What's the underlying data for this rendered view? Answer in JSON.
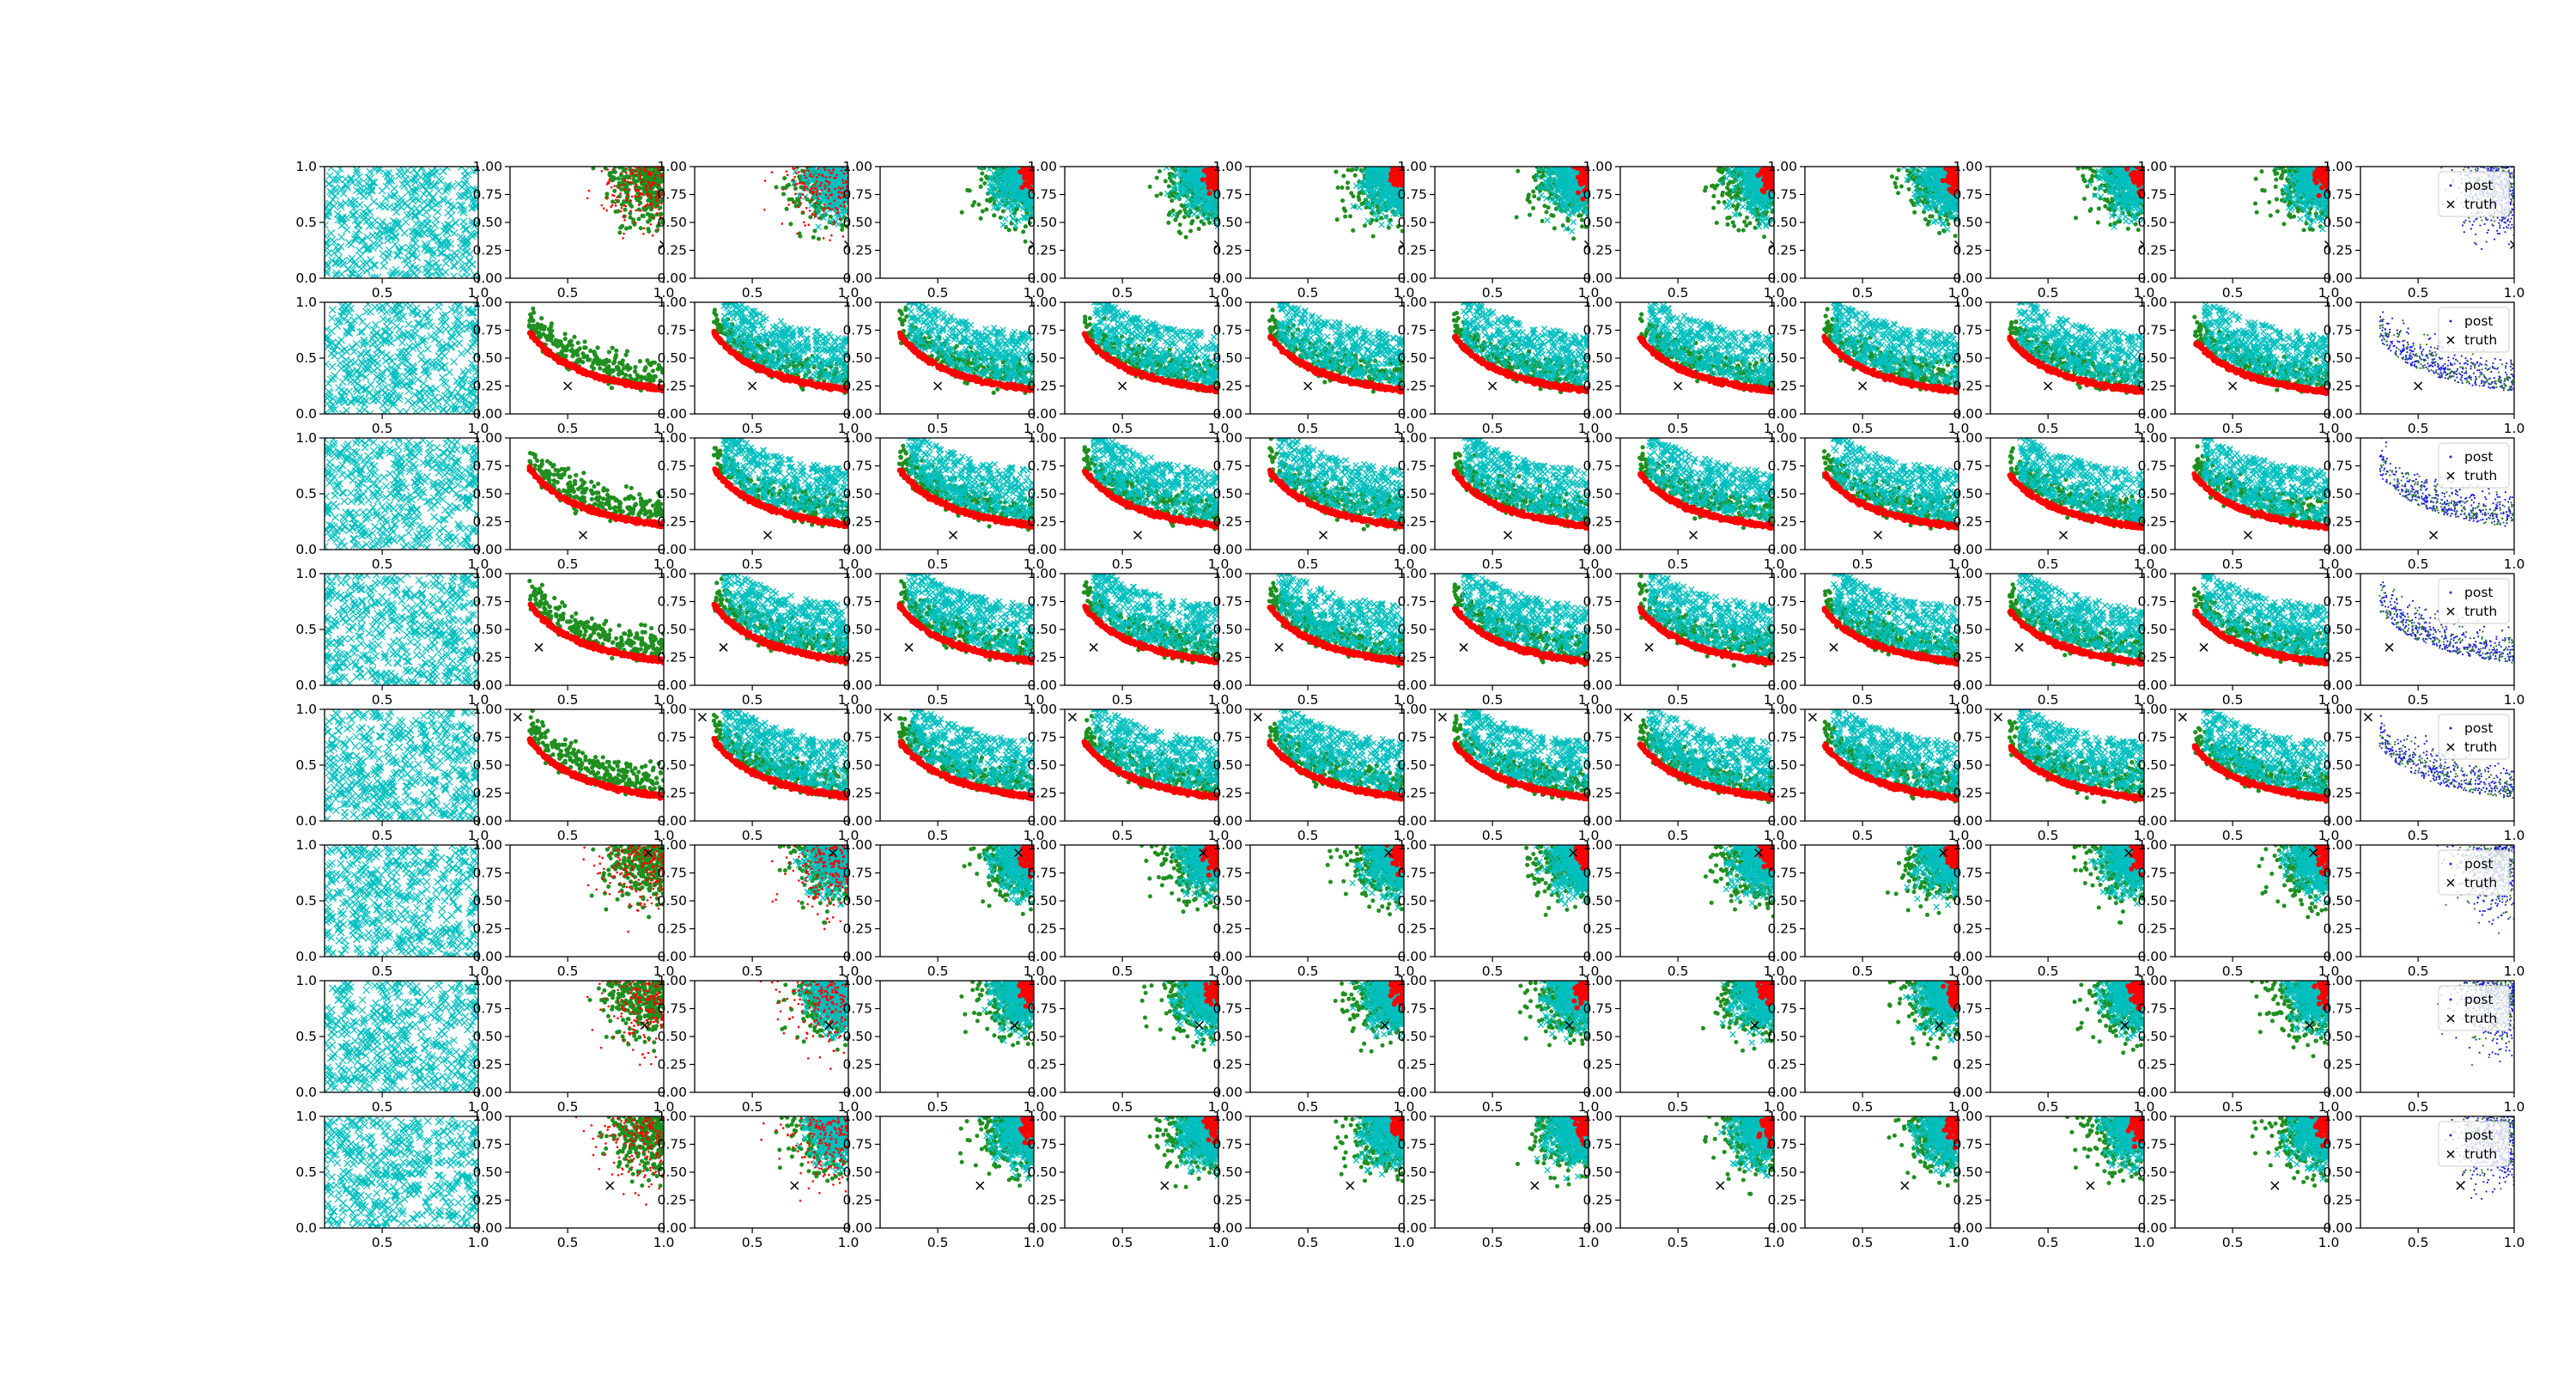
{
  "chart_data": {
    "type": "scatter",
    "grid": false,
    "layout_grid": {
      "rows": 8,
      "cols": 12
    },
    "x_axis": {
      "range": [
        0.2,
        1.0
      ],
      "ticks": [
        0.5,
        1.0
      ],
      "tick_labels": [
        "0.5",
        "1.0"
      ]
    },
    "y_axis": {
      "range": [
        0.0,
        1.0
      ]
    },
    "first_column_y_ticks": [
      "0.0",
      "0.5",
      "1.0"
    ],
    "other_columns_y_ticks": [
      "0.00",
      "0.25",
      "0.50",
      "0.75",
      "1.00"
    ],
    "legend": {
      "position": "upper-right",
      "entries": [
        "post",
        "truth"
      ]
    },
    "series": [
      {
        "name": "post",
        "marker": "point",
        "color": "#1f1fdf"
      },
      {
        "name": "truth",
        "marker": "x",
        "color": "#000000"
      }
    ],
    "colors": {
      "samples_cyan": "#00bfbf",
      "samples_green": "#1f8f1f",
      "samples_red": "#ff0000",
      "posterior_blue": "#1f1fdf",
      "posterior_green": "#2e7d2e",
      "truth": "#000000"
    },
    "rows": [
      {
        "row": 1,
        "truth": [
          1.0,
          0.3
        ],
        "shape": "corner"
      },
      {
        "row": 2,
        "truth": [
          0.5,
          0.25
        ],
        "shape": "curve"
      },
      {
        "row": 3,
        "truth": [
          0.58,
          0.13
        ],
        "shape": "curve"
      },
      {
        "row": 4,
        "truth": [
          0.35,
          0.34
        ],
        "shape": "curve"
      },
      {
        "row": 5,
        "truth": [
          0.24,
          0.93
        ],
        "shape": "curve"
      },
      {
        "row": 6,
        "truth": [
          0.92,
          0.93
        ],
        "shape": "corner"
      },
      {
        "row": 7,
        "truth": [
          0.9,
          0.6
        ],
        "shape": "corner"
      },
      {
        "row": 8,
        "truth": [
          0.72,
          0.38
        ],
        "shape": "corner"
      }
    ]
  }
}
